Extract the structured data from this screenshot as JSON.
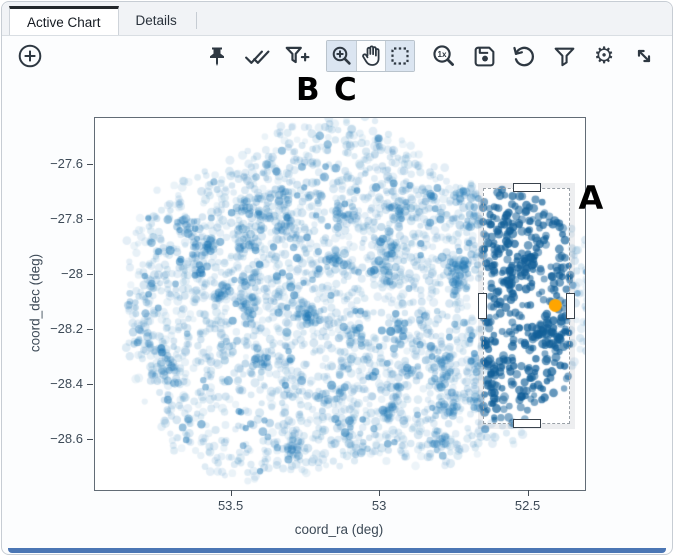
{
  "tabs": [
    {
      "label": "Active Chart",
      "active": true
    },
    {
      "label": "Details",
      "active": false
    }
  ],
  "toolbar": {
    "zoom_reset_label": "1x",
    "left_buttons": [
      {
        "icon": "circled-plus",
        "name": "add-chart",
        "active": false
      }
    ],
    "right_buttons": [
      {
        "icon": "pin",
        "name": "pin-chart",
        "active": false
      },
      {
        "icon": "double-check",
        "name": "select-all",
        "active": false,
        "annotation": "B"
      },
      {
        "icon": "filter-add",
        "name": "add-filter-from-selection",
        "active": false,
        "annotation": "C"
      },
      {
        "icon": "magnifier-plus",
        "name": "zoom-mode",
        "active": true,
        "group": "drag-mode"
      },
      {
        "icon": "hand",
        "name": "pan-mode",
        "active": false,
        "group": "drag-mode"
      },
      {
        "icon": "dashed-box",
        "name": "box-select-mode",
        "active": true,
        "group": "drag-mode"
      },
      {
        "icon": "magnifier-1x",
        "name": "zoom-original",
        "active": false
      },
      {
        "icon": "floppy-save",
        "name": "save-chart",
        "active": false
      },
      {
        "icon": "rotate-arrow",
        "name": "restore-chart",
        "active": false
      },
      {
        "icon": "funnel",
        "name": "filters",
        "active": false
      },
      {
        "icon": "gear",
        "name": "chart-settings",
        "active": false
      },
      {
        "icon": "diagonal-arrows",
        "name": "expand-chart",
        "active": false
      }
    ]
  },
  "annotations": {
    "icon_label_b": "B",
    "icon_label_c": "C",
    "selection_label": "A"
  },
  "chart_data": {
    "type": "scatter",
    "title": "",
    "xlabel": "coord_ra (deg)",
    "ylabel": "coord_dec (deg)",
    "grid": false,
    "x_axis_reversed": true,
    "x_range_lr": [
      53.96,
      52.31
    ],
    "y_range_tb": [
      -27.43,
      -28.78
    ],
    "x_ticks": [
      {
        "label": "53.5",
        "value": 53.5
      },
      {
        "label": "53",
        "value": 53.0
      },
      {
        "label": "52.5",
        "value": 52.5
      }
    ],
    "y_ticks": [
      {
        "label": "−27.6",
        "value": -27.6
      },
      {
        "label": "−27.8",
        "value": -27.8
      },
      {
        "label": "−28",
        "value": -28.0
      },
      {
        "label": "−28.2",
        "value": -28.2
      },
      {
        "label": "−28.4",
        "value": -28.4
      },
      {
        "label": "−28.6",
        "value": -28.6
      }
    ],
    "series": [
      {
        "name": "unselected points",
        "marker_color": "#1f77b4",
        "marker_opacity": 0.13,
        "approx_count": 3300,
        "cloud": {
          "center_ra": 53.11,
          "center_dec": -28.1,
          "radius_ra": 0.78,
          "radius_dec": 0.6
        }
      },
      {
        "name": "selected points inside box A",
        "marker_color": "#125f98",
        "marker_opacity": 0.6,
        "note": "same cloud, points falling inside the selection box drawn dark/opaque"
      }
    ],
    "highlight_point": {
      "ra": 52.41,
      "dec": -28.11,
      "color": "#ffa500"
    },
    "selection_box": {
      "label": "A",
      "ra_range": [
        52.654,
        52.359
      ],
      "dec_range": [
        -27.683,
        -28.539
      ]
    },
    "render": {
      "seed": 20,
      "n_base": 2700,
      "n_outliers": 170,
      "n_clusters": 55,
      "cluster_pts_max": 14,
      "pt_r_min": 3.0,
      "pt_r_max": 4.6,
      "orange_r": 6.5
    }
  },
  "colors": {
    "bottom_bar": "#4b76b4",
    "selected_point": "#125f98",
    "base_point": "#1f77b4"
  }
}
